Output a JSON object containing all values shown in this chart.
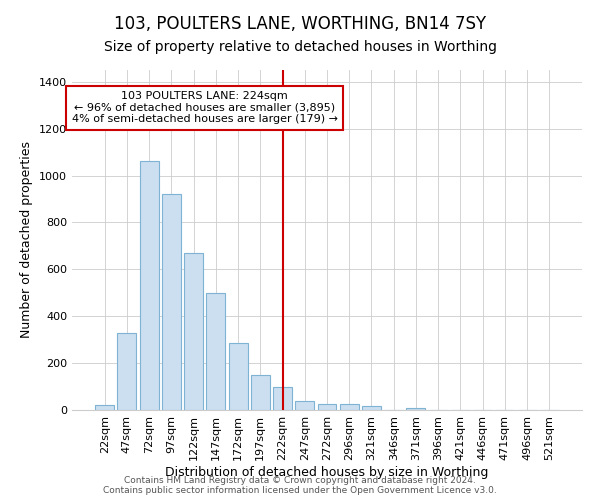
{
  "title": "103, POULTERS LANE, WORTHING, BN14 7SY",
  "subtitle": "Size of property relative to detached houses in Worthing",
  "xlabel": "Distribution of detached houses by size in Worthing",
  "ylabel": "Number of detached properties",
  "bar_labels": [
    "22sqm",
    "47sqm",
    "72sqm",
    "97sqm",
    "122sqm",
    "147sqm",
    "172sqm",
    "197sqm",
    "222sqm",
    "247sqm",
    "272sqm",
    "296sqm",
    "321sqm",
    "346sqm",
    "371sqm",
    "396sqm",
    "421sqm",
    "446sqm",
    "471sqm",
    "496sqm",
    "521sqm"
  ],
  "bar_values": [
    20,
    330,
    1060,
    920,
    670,
    500,
    285,
    150,
    100,
    40,
    25,
    25,
    15,
    0,
    10,
    0,
    0,
    0,
    0,
    0,
    0
  ],
  "bar_color": "#ccdff0",
  "bar_edge_color": "#7fb3d3",
  "vline_color": "#cc0000",
  "annotation_text": "103 POULTERS LANE: 224sqm\n← 96% of detached houses are smaller (3,895)\n4% of semi-detached houses are larger (179) →",
  "annotation_box_color": "#ffffff",
  "annotation_box_edge": "#cc0000",
  "ylim": [
    0,
    1450
  ],
  "yticks": [
    0,
    200,
    400,
    600,
    800,
    1000,
    1200,
    1400
  ],
  "bg_color": "#ffffff",
  "plot_bg_color": "#ffffff",
  "grid_color": "#cccccc",
  "footer": "Contains HM Land Registry data © Crown copyright and database right 2024.\nContains public sector information licensed under the Open Government Licence v3.0.",
  "title_fontsize": 12,
  "subtitle_fontsize": 10,
  "label_fontsize": 9,
  "tick_fontsize": 8,
  "footer_fontsize": 6.5
}
